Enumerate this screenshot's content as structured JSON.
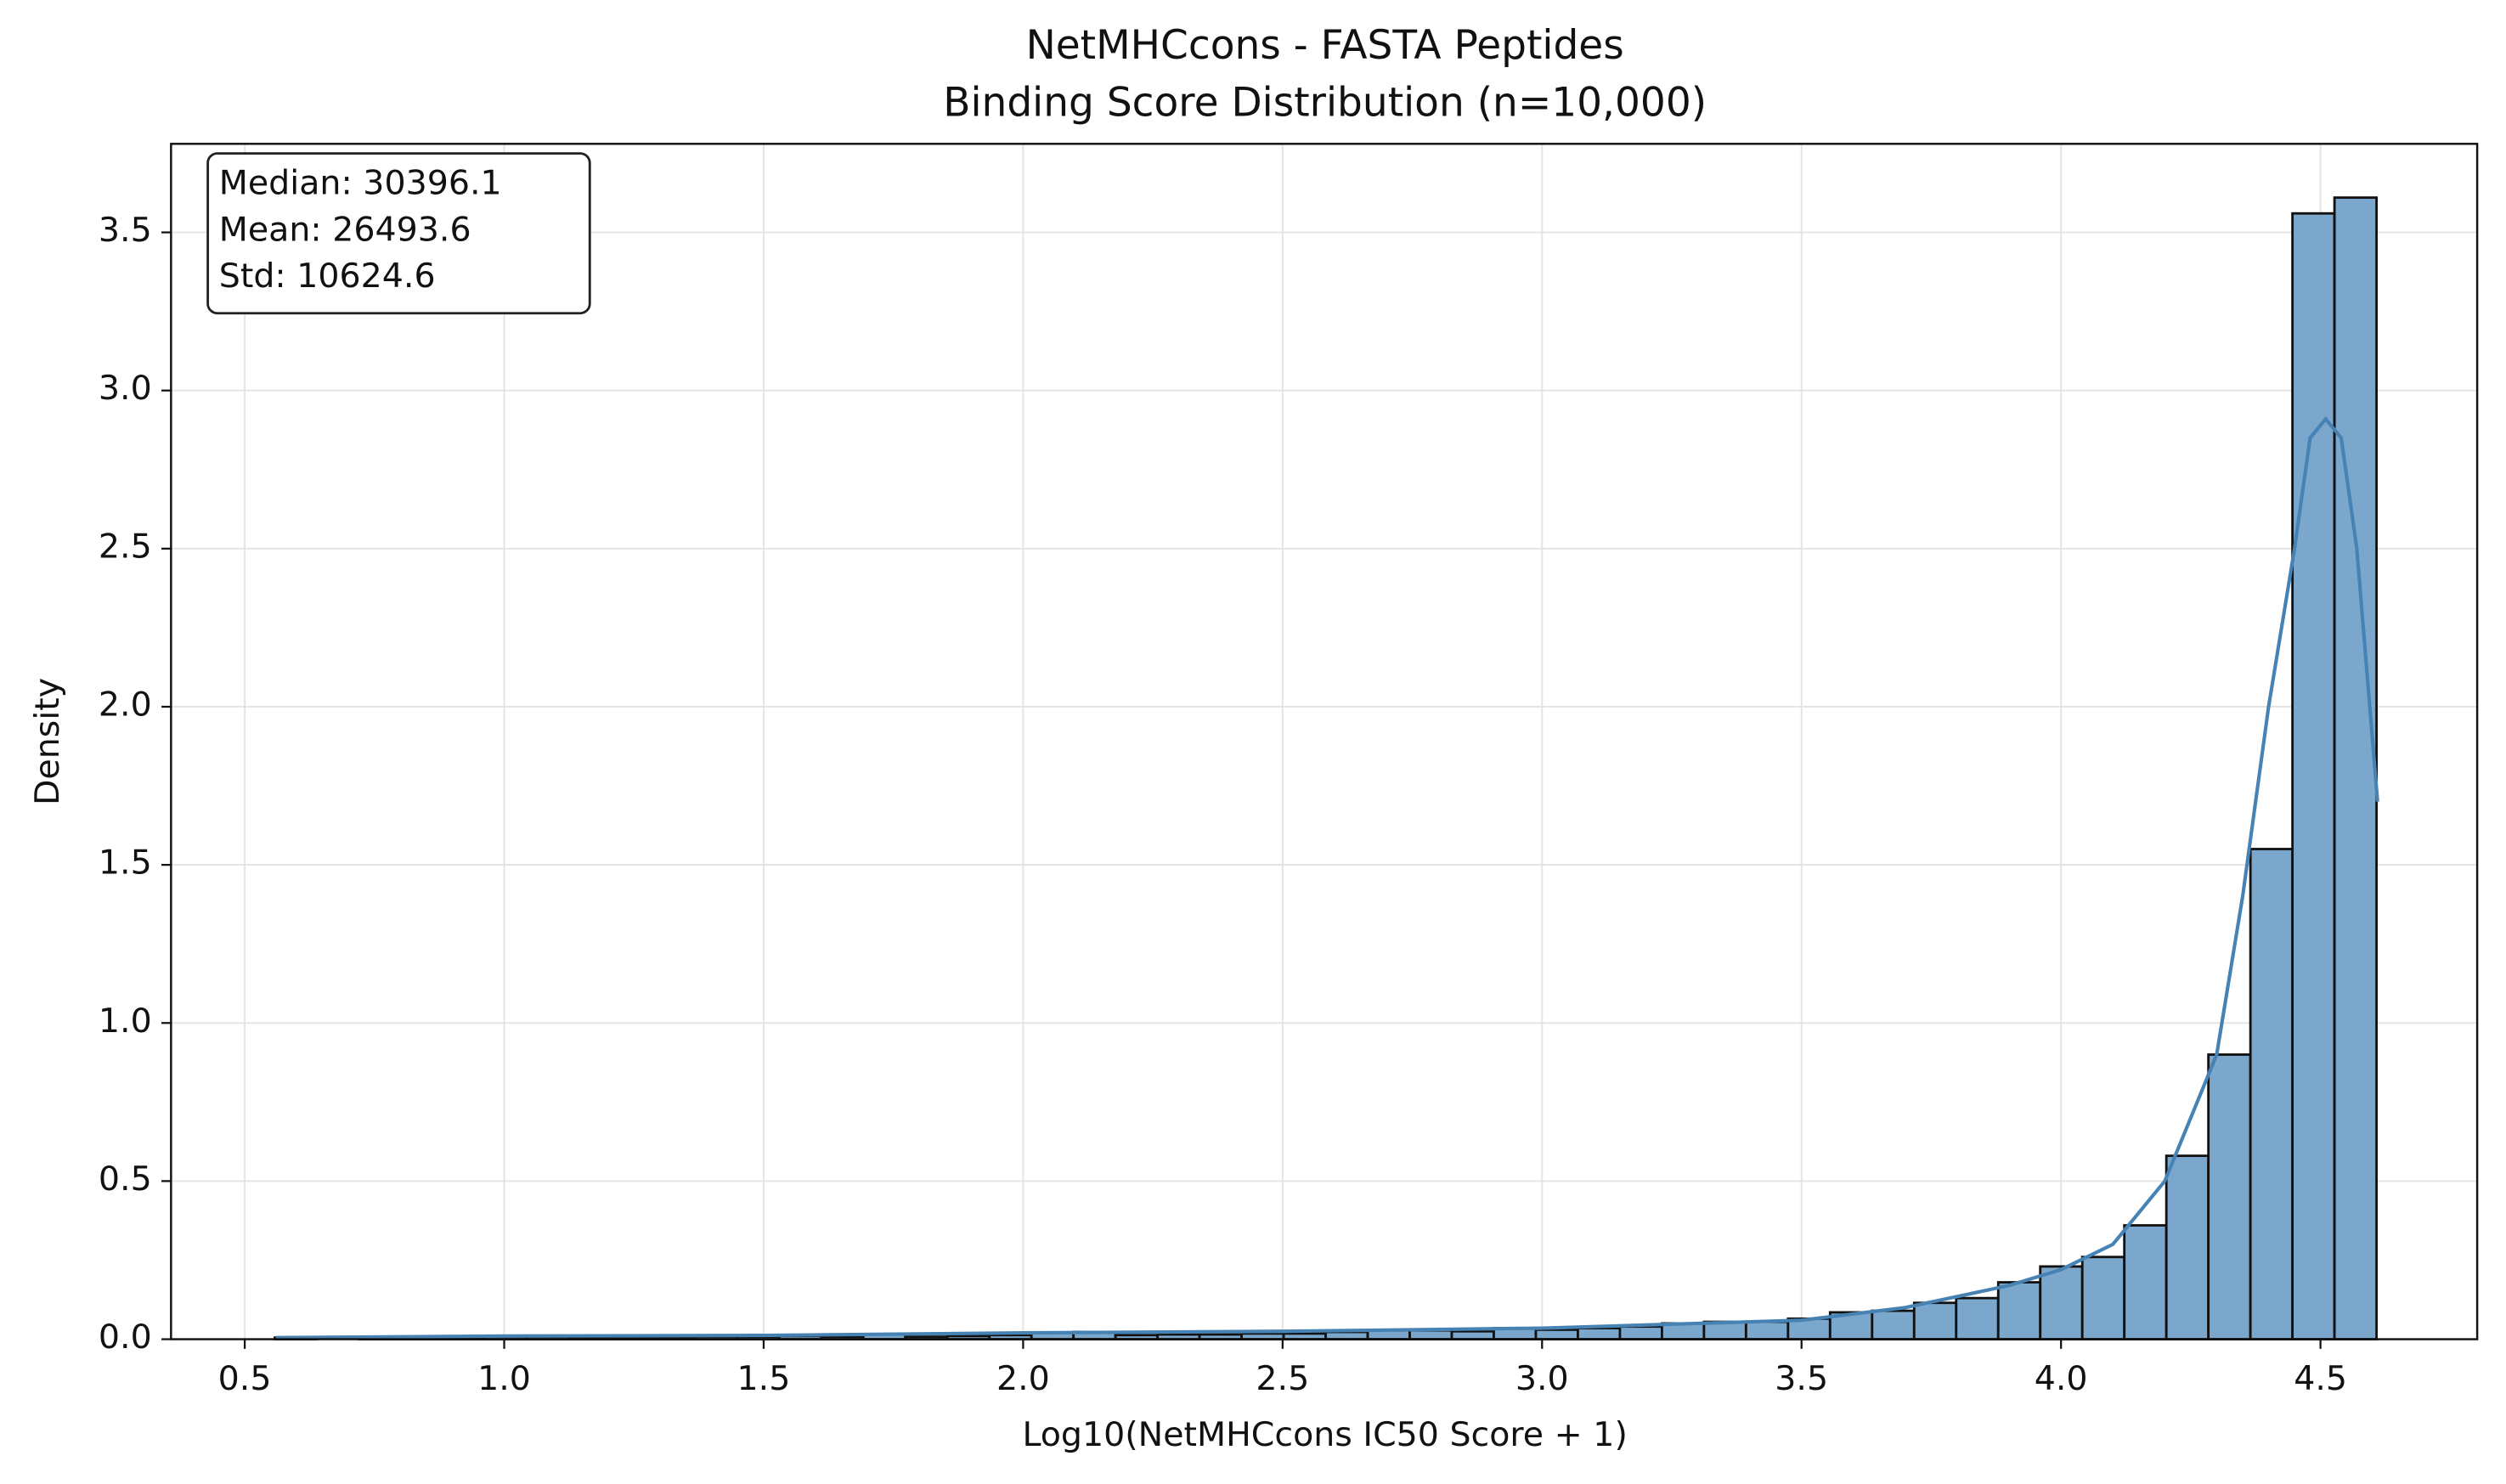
{
  "chart_data": {
    "type": "histogram",
    "title": [
      "NetMHCcons - FASTA Peptides",
      "Binding Score Distribution (n=10,000)"
    ],
    "x_label": "Log10(NetMHCcons IC50 Score + 1)",
    "y_label": "Density",
    "stats_box": [
      "Median: 30396.1",
      "Mean: 26493.6",
      "Std: 10624.6"
    ],
    "bins": [
      0.558,
      0.639,
      0.72,
      0.801,
      0.882,
      0.963,
      1.044,
      1.125,
      1.206,
      1.287,
      1.368,
      1.449,
      1.53,
      1.611,
      1.692,
      1.773,
      1.854,
      1.935,
      2.016,
      2.097,
      2.178,
      2.259,
      2.34,
      2.421,
      2.502,
      2.583,
      2.664,
      2.745,
      2.826,
      2.907,
      2.988,
      3.069,
      3.15,
      3.231,
      3.312,
      3.393,
      3.474,
      3.555,
      3.636,
      3.717,
      3.798,
      3.879,
      3.96,
      4.041,
      4.122,
      4.203,
      4.284,
      4.365,
      4.446,
      4.527,
      4.608
    ],
    "counts": [
      0.005,
      0,
      0.003,
      0.008,
      0.005,
      0.008,
      0.008,
      0.005,
      0.005,
      0.005,
      0.008,
      0.008,
      0.01,
      0.008,
      0.015,
      0.008,
      0.01,
      0.013,
      0.02,
      0.023,
      0.013,
      0.015,
      0.015,
      0.018,
      0.018,
      0.023,
      0.028,
      0.028,
      0.025,
      0.035,
      0.03,
      0.035,
      0.04,
      0.05,
      0.055,
      0.055,
      0.065,
      0.085,
      0.09,
      0.115,
      0.13,
      0.18,
      0.23,
      0.26,
      0.36,
      0.58,
      0.9,
      1.55,
      3.56,
      3.61
    ],
    "color": "#7ba7cc",
    "edge_color": "#111111",
    "kde": {
      "color": "#4682b4",
      "x": [
        0.56,
        1.0,
        1.5,
        2.0,
        2.5,
        3.0,
        3.3,
        3.5,
        3.7,
        3.9,
        4.0,
        4.1,
        4.2,
        4.3,
        4.35,
        4.4,
        4.45,
        4.48,
        4.51,
        4.54,
        4.57,
        4.61
      ],
      "y": [
        0.005,
        0.01,
        0.012,
        0.02,
        0.025,
        0.035,
        0.05,
        0.06,
        0.1,
        0.17,
        0.22,
        0.3,
        0.5,
        0.9,
        1.4,
        2.0,
        2.5,
        2.85,
        2.91,
        2.85,
        2.5,
        1.7
      ]
    },
    "xlim": [
      0.358,
      4.802
    ],
    "ylim": [
      0,
      3.78
    ],
    "xticks": [
      0.5,
      {
        "value": 1,
        "label": "1.0"
      },
      1.5,
      {
        "value": 2,
        "label": "2.0"
      },
      2.5,
      {
        "value": 3,
        "label": "3.0"
      },
      3.5,
      {
        "value": 4,
        "label": "4.0"
      },
      4.5
    ],
    "yticks": [
      {
        "value": 0,
        "label": "0.0"
      },
      0.5,
      {
        "value": 1,
        "label": "1.0"
      },
      1.5,
      {
        "value": 2,
        "label": "2.0"
      },
      2.5,
      {
        "value": 3,
        "label": "3.0"
      },
      3.5
    ],
    "grid": true
  }
}
